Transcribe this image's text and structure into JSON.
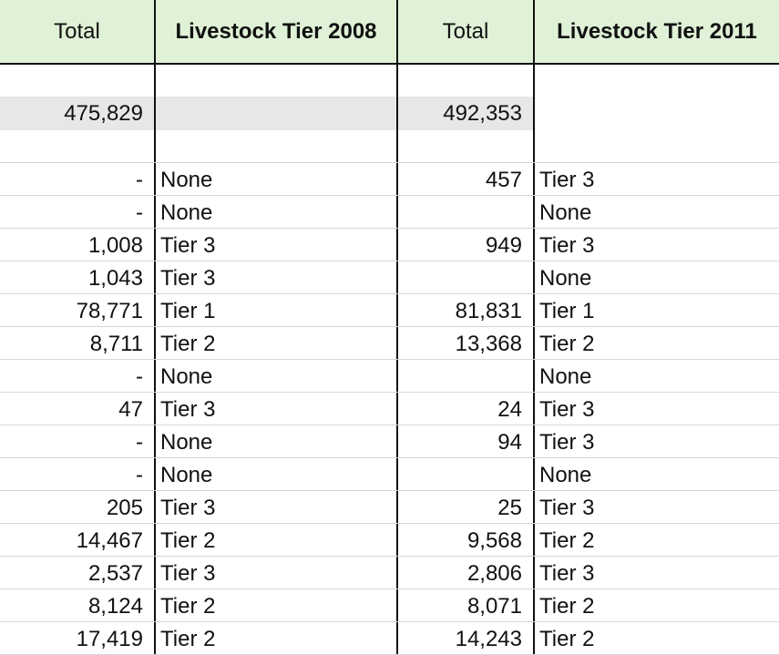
{
  "header": {
    "col1": "Total",
    "col2": "Livestock Tier 2008",
    "col3": "Total",
    "col4": "Livestock Tier 2011"
  },
  "totals": {
    "total_2008": "475,829",
    "total_2011": "492,353"
  },
  "rows": [
    {
      "total_2008": "-",
      "tier_2008": "None",
      "total_2011": "457",
      "tier_2011": "Tier 3"
    },
    {
      "total_2008": "-",
      "tier_2008": "None",
      "total_2011": "",
      "tier_2011": "None"
    },
    {
      "total_2008": "1,008",
      "tier_2008": "Tier 3",
      "total_2011": "949",
      "tier_2011": "Tier 3"
    },
    {
      "total_2008": "1,043",
      "tier_2008": "Tier 3",
      "total_2011": "",
      "tier_2011": "None"
    },
    {
      "total_2008": "78,771",
      "tier_2008": "Tier 1",
      "total_2011": "81,831",
      "tier_2011": "Tier 1"
    },
    {
      "total_2008": "8,711",
      "tier_2008": "Tier 2",
      "total_2011": "13,368",
      "tier_2011": "Tier 2"
    },
    {
      "total_2008": "-",
      "tier_2008": "None",
      "total_2011": "",
      "tier_2011": "None"
    },
    {
      "total_2008": "47",
      "tier_2008": "Tier 3",
      "total_2011": "24",
      "tier_2011": "Tier 3"
    },
    {
      "total_2008": "-",
      "tier_2008": "None",
      "total_2011": "94",
      "tier_2011": "Tier 3"
    },
    {
      "total_2008": "-",
      "tier_2008": "None",
      "total_2011": "",
      "tier_2011": "None"
    },
    {
      "total_2008": "205",
      "tier_2008": "Tier 3",
      "total_2011": "25",
      "tier_2011": "Tier 3"
    },
    {
      "total_2008": "14,467",
      "tier_2008": "Tier 2",
      "total_2011": "9,568",
      "tier_2011": "Tier 2"
    },
    {
      "total_2008": "2,537",
      "tier_2008": "Tier 3",
      "total_2011": "2,806",
      "tier_2011": "Tier 3"
    },
    {
      "total_2008": "8,124",
      "tier_2008": "Tier 2",
      "total_2011": "8,071",
      "tier_2011": "Tier 2"
    },
    {
      "total_2008": "17,419",
      "tier_2008": "Tier 2",
      "total_2011": "14,243",
      "tier_2011": "Tier 2"
    }
  ],
  "colors": {
    "header_bg": "#dff1d6",
    "total_row_bg": "#e7e7e7",
    "grid_line": "#d7d7d7",
    "border_dark": "#111111"
  }
}
